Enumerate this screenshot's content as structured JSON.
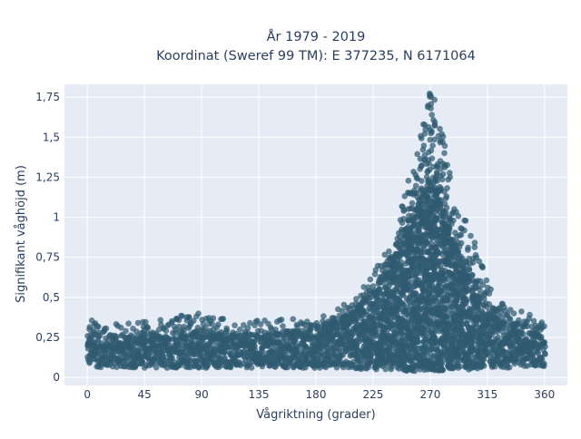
{
  "chart_data": {
    "type": "scatter",
    "title_line1": "År 1979 - 2019",
    "title_line2": "Koordinat (Sweref 99 TM): E 377235, N 6171064",
    "xlabel": "Vågriktning (grader)",
    "ylabel": "Signifikant våghöjd (m)",
    "xlim": [
      -18,
      378
    ],
    "ylim": [
      -0.05,
      1.83
    ],
    "x_ticks": [
      0,
      45,
      90,
      135,
      180,
      225,
      270,
      315,
      360
    ],
    "x_tick_labels": [
      "0",
      "45",
      "90",
      "135",
      "180",
      "225",
      "270",
      "315",
      "360"
    ],
    "y_ticks": [
      0,
      0.25,
      0.5,
      0.75,
      1,
      1.25,
      1.5,
      1.75
    ],
    "y_tick_labels": [
      "0",
      "0,25",
      "0,5",
      "0,75",
      "1",
      "1,25",
      "1,5",
      "1,75"
    ],
    "grid": true,
    "marker_color": "#2f5a70",
    "plot_background": "#e5ecf6",
    "envelope": {
      "directions": [
        0,
        15,
        30,
        45,
        60,
        75,
        90,
        105,
        120,
        135,
        150,
        165,
        180,
        195,
        210,
        225,
        240,
        250,
        260,
        265,
        270,
        275,
        280,
        285,
        290,
        300,
        315,
        330,
        345,
        360
      ],
      "dense_max": [
        0.26,
        0.25,
        0.25,
        0.26,
        0.26,
        0.27,
        0.27,
        0.26,
        0.26,
        0.27,
        0.28,
        0.29,
        0.31,
        0.35,
        0.42,
        0.55,
        0.72,
        0.9,
        1.05,
        1.15,
        1.18,
        1.15,
        1.05,
        0.92,
        0.78,
        0.6,
        0.42,
        0.33,
        0.28,
        0.26
      ],
      "outer_max": [
        0.4,
        0.33,
        0.34,
        0.37,
        0.36,
        0.39,
        0.4,
        0.37,
        0.36,
        0.37,
        0.36,
        0.37,
        0.39,
        0.45,
        0.5,
        0.65,
        0.85,
        1.15,
        1.4,
        1.62,
        1.8,
        1.72,
        1.5,
        1.3,
        1.1,
        0.95,
        0.6,
        0.45,
        0.41,
        0.39
      ],
      "min": [
        0.07,
        0.06,
        0.06,
        0.06,
        0.06,
        0.06,
        0.06,
        0.06,
        0.06,
        0.06,
        0.06,
        0.06,
        0.06,
        0.06,
        0.05,
        0.05,
        0.05,
        0.04,
        0.04,
        0.04,
        0.04,
        0.04,
        0.04,
        0.05,
        0.05,
        0.05,
        0.06,
        0.06,
        0.07,
        0.07
      ]
    }
  }
}
